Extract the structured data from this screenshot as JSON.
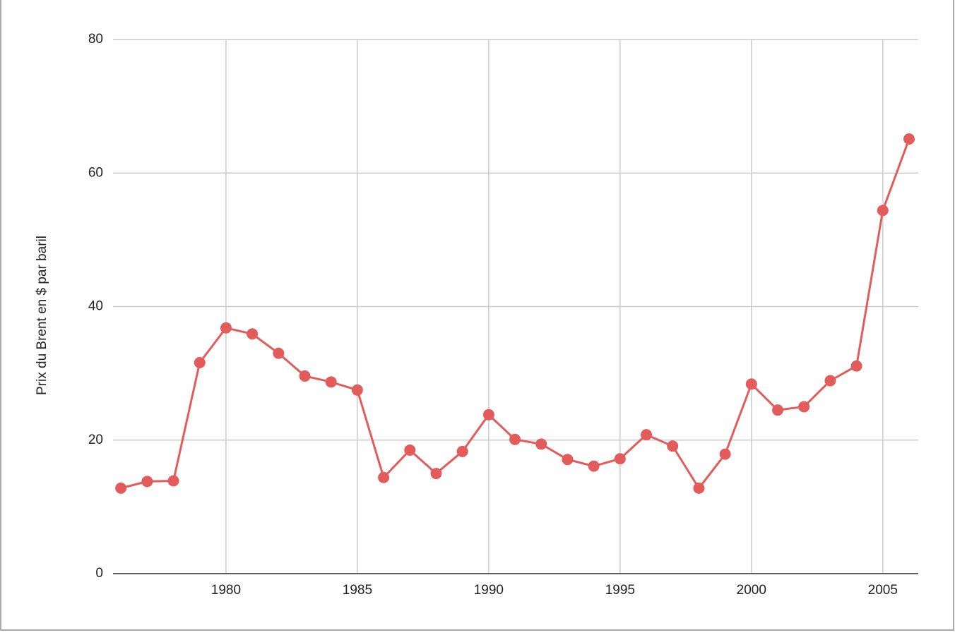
{
  "chart_data": {
    "type": "line",
    "y_label": "Prix du Brent en $ par baril",
    "x": [
      1976,
      1977,
      1978,
      1979,
      1980,
      1981,
      1982,
      1983,
      1984,
      1985,
      1986,
      1987,
      1988,
      1989,
      1990,
      1991,
      1992,
      1993,
      1994,
      1995,
      1996,
      1997,
      1998,
      1999,
      2000,
      2001,
      2002,
      2003,
      2004,
      2005,
      2006
    ],
    "series": [
      {
        "color": "#e45b5b",
        "values": [
          12.8,
          13.8,
          13.9,
          31.6,
          36.8,
          35.9,
          33.0,
          29.6,
          28.7,
          27.5,
          14.4,
          18.5,
          15.0,
          18.3,
          23.8,
          20.1,
          19.4,
          17.1,
          16.1,
          17.2,
          20.8,
          19.1,
          12.8,
          17.9,
          28.4,
          24.5,
          25.0,
          28.9,
          31.1,
          54.4,
          65.1
        ]
      }
    ],
    "xlim": [
      1975.7,
      2006.35
    ],
    "xticks": [
      1980,
      1985,
      1990,
      1995,
      2000,
      2005
    ],
    "ylim": [
      0,
      80
    ],
    "yticks": [
      0,
      20,
      40,
      60,
      80
    ],
    "grid": true
  }
}
